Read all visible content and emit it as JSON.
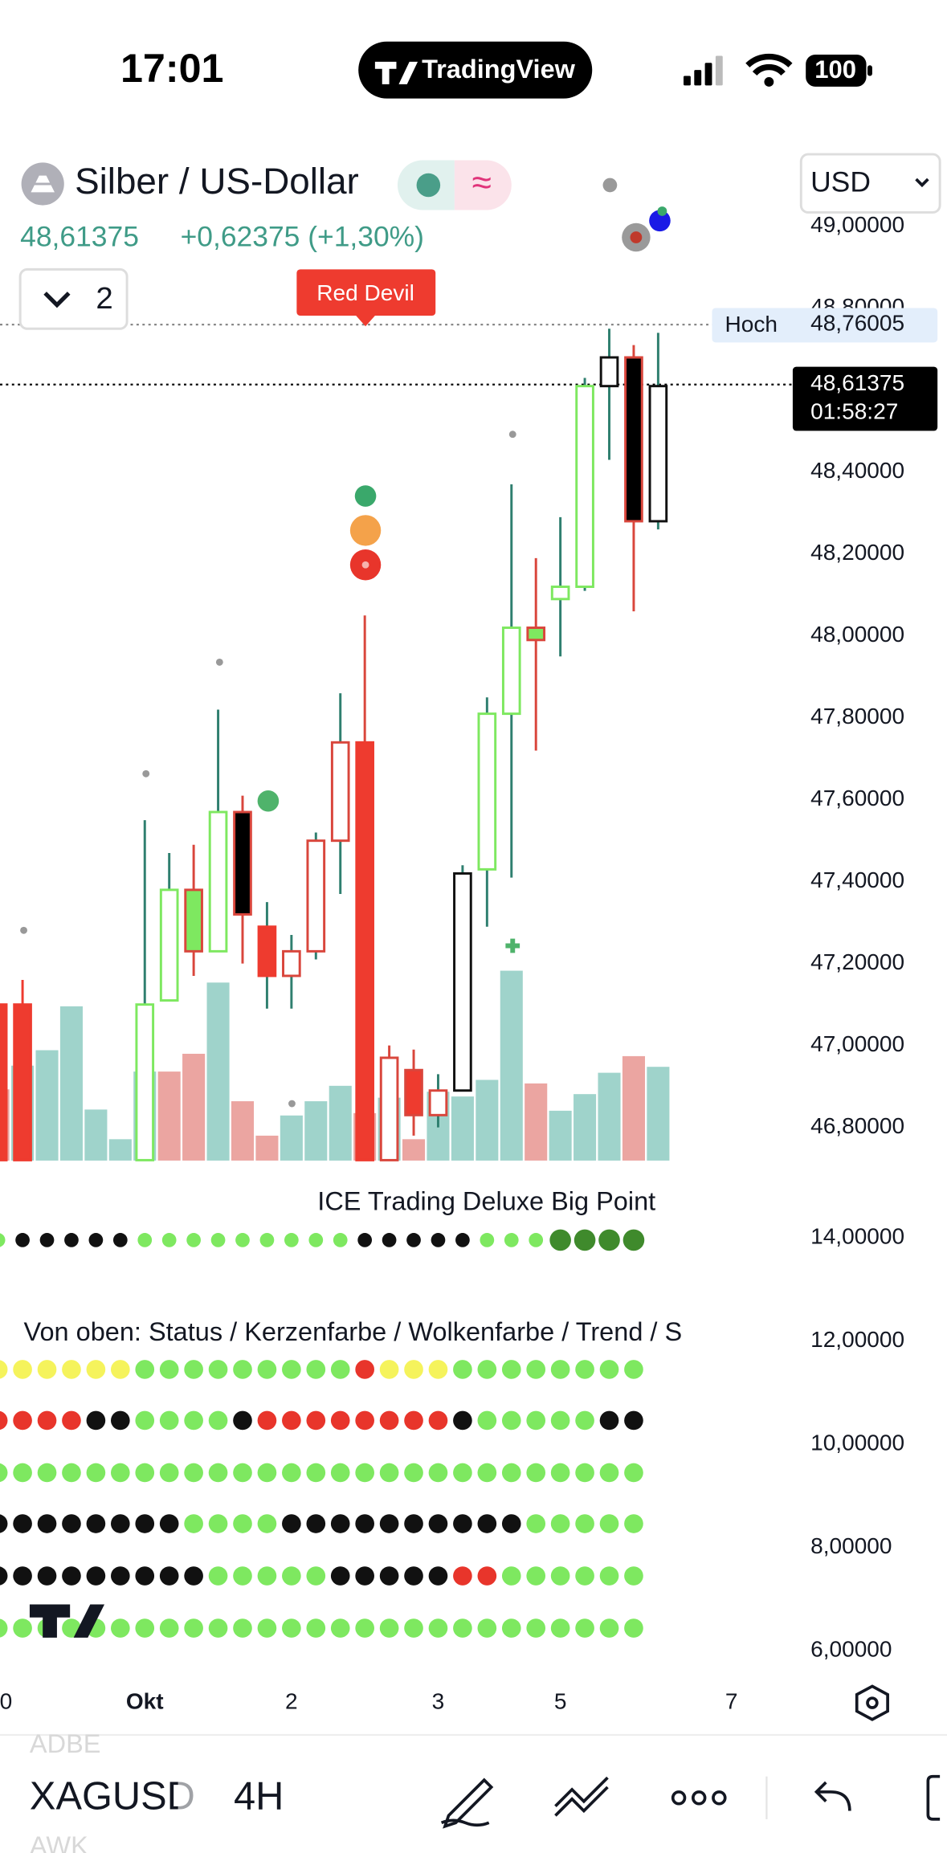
{
  "status_bar": {
    "time": "17:01",
    "app": "TradingView",
    "battery": "100"
  },
  "header": {
    "symbol_name": "Silber / US-Dollar",
    "price": "48,61375",
    "change": "+0,62375 (+1,30%)",
    "interval_count": "2",
    "currency": "USD"
  },
  "chart_data": {
    "type": "candlestick",
    "annotation": "Red Devil",
    "categories": [
      "0",
      null,
      null,
      null,
      null,
      null,
      "Okt",
      null,
      null,
      null,
      null,
      null,
      "2",
      null,
      null,
      null,
      null,
      null,
      "3",
      null,
      null,
      null,
      null,
      "5",
      null,
      null,
      null,
      null,
      null,
      null,
      "7"
    ],
    "candles": [
      {
        "o": 47.1,
        "h": 47.1,
        "l": 46.72,
        "c": 46.72,
        "fill": "#ee3b2f",
        "stroke": "#ee3b2f",
        "wick": "#ee3b2f"
      },
      {
        "o": 47.1,
        "h": 47.16,
        "l": 46.72,
        "c": 46.72,
        "fill": "#ee3b2f",
        "stroke": "#ee3b2f",
        "wick": "#ee3b2f"
      },
      null,
      null,
      null,
      null,
      {
        "o": 46.72,
        "h": 47.55,
        "l": 46.72,
        "c": 47.1,
        "fill": "#ffffff",
        "stroke": "#7ee860",
        "wick": "#2f7f6f"
      },
      {
        "o": 47.11,
        "h": 47.47,
        "l": 47.11,
        "c": 47.38,
        "fill": "#ffffff",
        "stroke": "#7ee860",
        "wick": "#2f7f6f"
      },
      {
        "o": 47.23,
        "h": 47.49,
        "l": 47.17,
        "c": 47.38,
        "fill": "#7ee860",
        "stroke": "#d9463c",
        "wick": "#d9463c"
      },
      {
        "o": 47.23,
        "h": 47.82,
        "l": 47.23,
        "c": 47.57,
        "fill": "#ffffff",
        "stroke": "#7ee860",
        "wick": "#2f7f6f"
      },
      {
        "o": 47.57,
        "h": 47.61,
        "l": 47.2,
        "c": 47.32,
        "fill": "#000000",
        "stroke": "#d9463c",
        "wick": "#d9463c"
      },
      {
        "o": 47.29,
        "h": 47.35,
        "l": 47.09,
        "c": 47.17,
        "fill": "#ee3b2f",
        "stroke": "#ee3b2f",
        "wick": "#2f7f6f"
      },
      {
        "o": 47.17,
        "h": 47.27,
        "l": 47.09,
        "c": 47.23,
        "fill": "#ffffff",
        "stroke": "#d9463c",
        "wick": "#2f7f6f"
      },
      {
        "o": 47.23,
        "h": 47.52,
        "l": 47.21,
        "c": 47.5,
        "fill": "#ffffff",
        "stroke": "#d9463c",
        "wick": "#2f7f6f"
      },
      {
        "o": 47.5,
        "h": 47.86,
        "l": 47.37,
        "c": 47.74,
        "fill": "#ffffff",
        "stroke": "#d9463c",
        "wick": "#2f7f6f"
      },
      {
        "o": 47.74,
        "h": 48.05,
        "l": 46.72,
        "c": 46.72,
        "fill": "#ee3b2f",
        "stroke": "#ee3b2f",
        "wick": "#d9463c"
      },
      {
        "o": 46.72,
        "h": 47.0,
        "l": 46.72,
        "c": 46.97,
        "fill": "#ffffff",
        "stroke": "#d9463c",
        "wick": "#d9463c"
      },
      {
        "o": 46.94,
        "h": 46.99,
        "l": 46.78,
        "c": 46.83,
        "fill": "#ee3b2f",
        "stroke": "#d9463c",
        "wick": "#d9463c"
      },
      {
        "o": 46.83,
        "h": 46.93,
        "l": 46.8,
        "c": 46.89,
        "fill": "#ffffff",
        "stroke": "#d9463c",
        "wick": "#2f7f6f"
      },
      {
        "o": 46.89,
        "h": 47.44,
        "l": 46.89,
        "c": 47.42,
        "fill": "#ffffff",
        "stroke": "#111111",
        "wick": "#2f7f6f"
      },
      {
        "o": 47.43,
        "h": 47.85,
        "l": 47.29,
        "c": 47.81,
        "fill": "#ffffff",
        "stroke": "#7ee860",
        "wick": "#2f7f6f"
      },
      {
        "o": 47.81,
        "h": 48.37,
        "l": 47.41,
        "c": 48.02,
        "fill": "#ffffff",
        "stroke": "#7ee860",
        "wick": "#2f7f6f"
      },
      {
        "o": 47.99,
        "h": 48.19,
        "l": 47.72,
        "c": 48.02,
        "fill": "#7ee860",
        "stroke": "#d9463c",
        "wick": "#d9463c"
      },
      {
        "o": 48.09,
        "h": 48.29,
        "l": 47.95,
        "c": 48.12,
        "fill": "#ffffff",
        "stroke": "#7ee860",
        "wick": "#2f7f6f"
      },
      {
        "o": 48.12,
        "h": 48.63,
        "l": 48.11,
        "c": 48.61,
        "fill": "#ffffff",
        "stroke": "#7ee860",
        "wick": "#2f7f6f"
      },
      {
        "o": 48.61,
        "h": 48.75,
        "l": 48.43,
        "c": 48.68,
        "fill": "#ffffff",
        "stroke": "#111111",
        "wick": "#2f7f6f"
      },
      {
        "o": 48.68,
        "h": 48.71,
        "l": 48.06,
        "c": 48.28,
        "fill": "#000000",
        "stroke": "#d9463c",
        "wick": "#d9463c"
      },
      {
        "o": 48.28,
        "h": 48.74,
        "l": 48.26,
        "c": 48.61,
        "fill": "#ffffff",
        "stroke": "#111111",
        "wick": "#2f7f6f"
      },
      null,
      null,
      null
    ],
    "volume": {
      "values": [
        60,
        80,
        93,
        130,
        43,
        18,
        75,
        75,
        90,
        150,
        50,
        21,
        38,
        50,
        63,
        40,
        53,
        18,
        58,
        54,
        68,
        160,
        65,
        42,
        56,
        74,
        88,
        79,
        null,
        null,
        null
      ],
      "colors": [
        "#eba5a1",
        "#9fd3cb",
        "#9fd3cb",
        "#9fd3cb",
        "#9fd3cb",
        "#9fd3cb",
        "#9fd3cb",
        "#eba5a1",
        "#eba5a1",
        "#9fd3cb",
        "#eba5a1",
        "#eba5a1",
        "#9fd3cb",
        "#9fd3cb",
        "#9fd3cb",
        "#eba5a1",
        "#9fd3cb",
        "#eba5a1",
        "#9fd3cb",
        "#9fd3cb",
        "#9fd3cb",
        "#9fd3cb",
        "#eba5a1",
        "#9fd3cb",
        "#9fd3cb",
        "#9fd3cb",
        "#eba5a1",
        "#9fd3cb",
        null,
        null,
        null
      ]
    },
    "ylim": [
      46.719,
      49.176
    ],
    "yticks": [
      {
        "value": 49.0,
        "label": "49,00000"
      },
      {
        "value": 48.8,
        "label": "48,80000"
      },
      {
        "value": 48.4,
        "label": "48,40000"
      },
      {
        "value": 48.2,
        "label": "48,20000"
      },
      {
        "value": 48.0,
        "label": "48,00000"
      },
      {
        "value": 47.8,
        "label": "47,80000"
      },
      {
        "value": 47.6,
        "label": "47,60000"
      },
      {
        "value": 47.4,
        "label": "47,40000"
      },
      {
        "value": 47.2,
        "label": "47,20000"
      },
      {
        "value": 47.0,
        "label": "47,00000"
      },
      {
        "value": 46.8,
        "label": "46,80000"
      }
    ],
    "price_lines": [
      {
        "label": "Hoch",
        "value": 48.76005,
        "value_label": "48,76005",
        "color": "#888888"
      },
      {
        "value": 48.61375,
        "value_label": "48,61375",
        "countdown": "01:58:27",
        "color": "#000000"
      }
    ],
    "indicator": {
      "title": "ICE Trading Deluxe Big Point",
      "subtitle": "Von oben: Status / Kerzenfarbe / Wolkenfarbe / Trend / S",
      "ylim": [
        5.45,
        14.99
      ],
      "yticks": [
        {
          "value": 14,
          "label": "14,00000"
        },
        {
          "value": 12,
          "label": "12,00000"
        },
        {
          "value": 10,
          "label": "10,00000"
        },
        {
          "value": 8,
          "label": "8,00000"
        },
        {
          "value": 6,
          "label": "6,00000"
        }
      ],
      "big_point": [
        "#7ee860",
        "#111111",
        "#111111",
        "#111111",
        "#111111",
        "#111111",
        "#7ee860",
        "#7ee860",
        "#7ee860",
        "#7ee860",
        "#7ee860",
        "#7ee860",
        "#7ee860",
        "#7ee860",
        "#7ee860",
        "#111111",
        "#111111",
        "#111111",
        "#111111",
        "#111111",
        "#7ee860",
        "#7ee860",
        "#7ee860",
        "#3f8a2c",
        "#3f8a2c",
        "#3f8a2c",
        "#3f8a2c",
        null,
        null,
        null,
        null
      ],
      "rows": [
        [
          "#f5f35c",
          "#f5f35c",
          "#f5f35c",
          "#f5f35c",
          "#f5f35c",
          "#f5f35c",
          "#7ee860",
          "#7ee860",
          "#7ee860",
          "#7ee860",
          "#7ee860",
          "#7ee860",
          "#7ee860",
          "#7ee860",
          "#7ee860",
          "#e8352b",
          "#f5f35c",
          "#f5f35c",
          "#f5f35c",
          "#7ee860",
          "#7ee860",
          "#7ee860",
          "#7ee860",
          "#7ee860",
          "#7ee860",
          "#7ee860",
          "#7ee860",
          null,
          null,
          null,
          null
        ],
        [
          "#e8352b",
          "#e8352b",
          "#e8352b",
          "#e8352b",
          "#111111",
          "#111111",
          "#7ee860",
          "#7ee860",
          "#7ee860",
          "#7ee860",
          "#111111",
          "#e8352b",
          "#e8352b",
          "#e8352b",
          "#e8352b",
          "#e8352b",
          "#e8352b",
          "#e8352b",
          "#e8352b",
          "#111111",
          "#7ee860",
          "#7ee860",
          "#7ee860",
          "#7ee860",
          "#7ee860",
          "#111111",
          "#111111",
          null,
          null,
          null,
          null
        ],
        [
          "#7ee860",
          "#7ee860",
          "#7ee860",
          "#7ee860",
          "#7ee860",
          "#7ee860",
          "#7ee860",
          "#7ee860",
          "#7ee860",
          "#7ee860",
          "#7ee860",
          "#7ee860",
          "#7ee860",
          "#7ee860",
          "#7ee860",
          "#7ee860",
          "#7ee860",
          "#7ee860",
          "#7ee860",
          "#7ee860",
          "#7ee860",
          "#7ee860",
          "#7ee860",
          "#7ee860",
          "#7ee860",
          "#7ee860",
          "#7ee860",
          null,
          null,
          null,
          null
        ],
        [
          "#111111",
          "#111111",
          "#111111",
          "#111111",
          "#111111",
          "#111111",
          "#111111",
          "#111111",
          "#7ee860",
          "#7ee860",
          "#7ee860",
          "#7ee860",
          "#111111",
          "#111111",
          "#111111",
          "#111111",
          "#111111",
          "#111111",
          "#111111",
          "#111111",
          "#111111",
          "#111111",
          "#7ee860",
          "#7ee860",
          "#7ee860",
          "#7ee860",
          "#7ee860",
          null,
          null,
          null,
          null
        ],
        [
          "#111111",
          "#111111",
          "#111111",
          "#111111",
          "#111111",
          "#111111",
          "#111111",
          "#111111",
          "#111111",
          "#7ee860",
          "#7ee860",
          "#7ee860",
          "#7ee860",
          "#7ee860",
          "#111111",
          "#111111",
          "#111111",
          "#111111",
          "#111111",
          "#e8352b",
          "#e8352b",
          "#7ee860",
          "#7ee860",
          "#7ee860",
          "#7ee860",
          "#7ee860",
          "#7ee860",
          null,
          null,
          null,
          null
        ],
        [
          "#7ee860",
          "#7ee860",
          "#7ee860",
          "#7ee860",
          "#7ee860",
          "#7ee860",
          "#7ee860",
          "#7ee860",
          "#7ee860",
          "#7ee860",
          "#7ee860",
          "#7ee860",
          "#7ee860",
          "#7ee860",
          "#7ee860",
          "#7ee860",
          "#7ee860",
          "#7ee860",
          "#7ee860",
          "#7ee860",
          "#7ee860",
          "#7ee860",
          "#7ee860",
          "#7ee860",
          "#7ee860",
          "#7ee860",
          "#7ee860",
          null,
          null,
          null,
          null
        ]
      ]
    }
  },
  "toolbar": {
    "watchlist_prev": "ADBE",
    "symbol": "XAGUSD",
    "interval": "4H",
    "watchlist_next": "AWK"
  }
}
